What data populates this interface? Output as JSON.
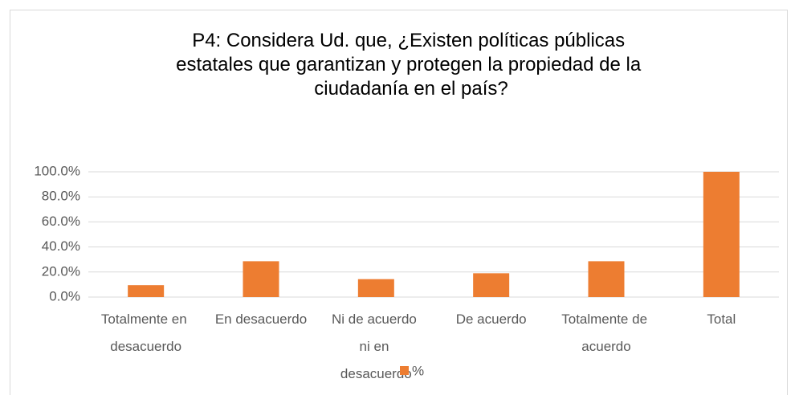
{
  "chart_data": {
    "type": "bar",
    "title": "P4: Considera Ud. que, ¿Existen políticas públicas estatales que garantizan y protegen la propiedad de la ciudadanía en el país?",
    "categories": [
      "Totalmente en desacuerdo",
      "En desacuerdo",
      "Ni de acuerdo ni en desacuerdo",
      "De acuerdo",
      "Totalmente de acuerdo",
      "Total"
    ],
    "series": [
      {
        "name": "%",
        "color": "#ed7d31",
        "values": [
          9.5,
          28.6,
          14.3,
          19,
          28.6,
          100
        ]
      }
    ],
    "ylim": [
      0,
      100
    ],
    "yticks": [
      {
        "value": 0,
        "label": "0.0%"
      },
      {
        "value": 20,
        "label": "20.0%"
      },
      {
        "value": 40,
        "label": "40.0%"
      },
      {
        "value": 60,
        "label": "60.0%"
      },
      {
        "value": 80,
        "label": "80.0%"
      },
      {
        "value": 100,
        "label": "100.0%"
      }
    ],
    "grid": true
  }
}
